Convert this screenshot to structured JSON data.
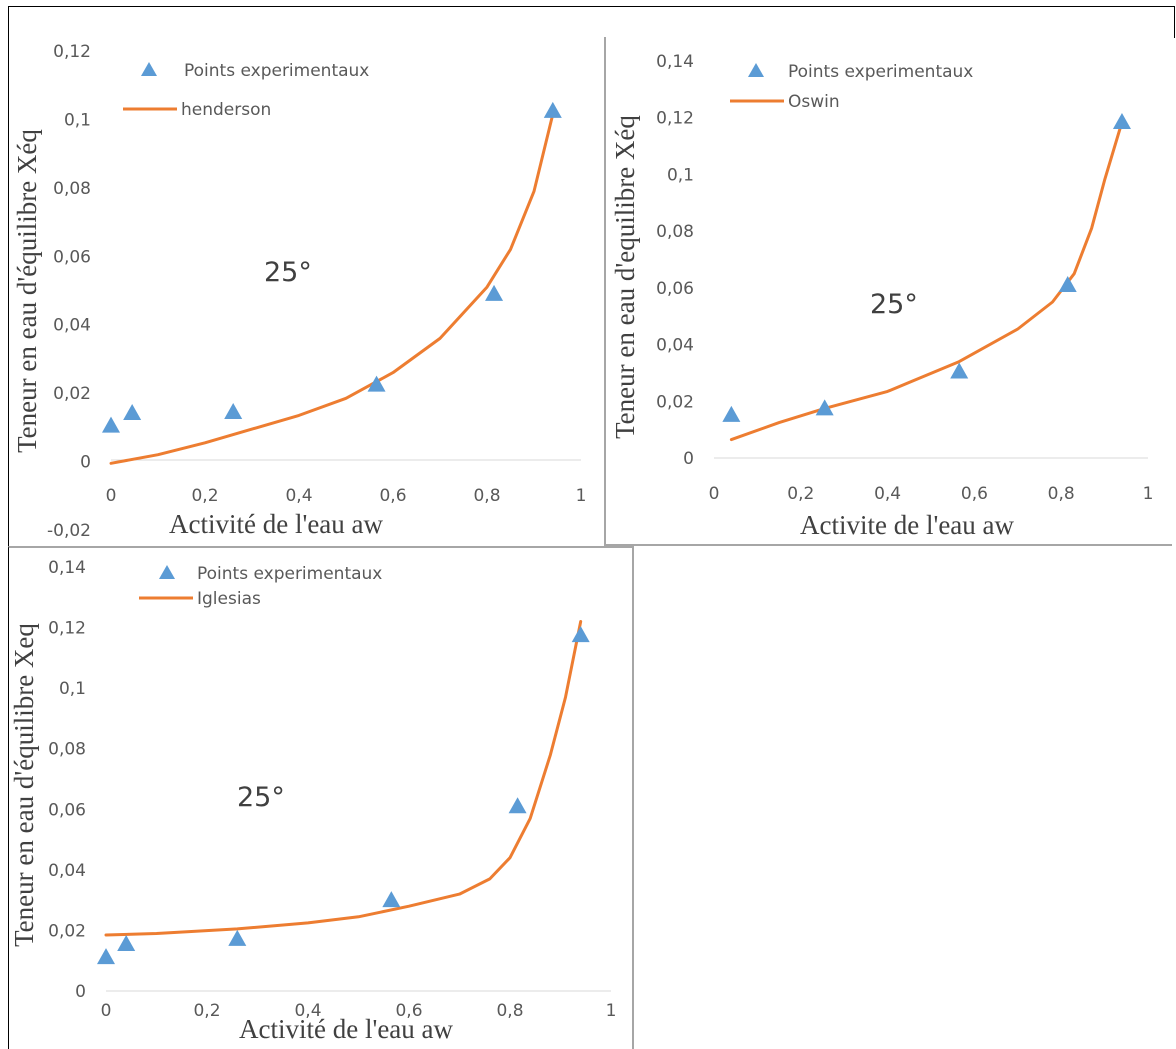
{
  "chart_data": [
    {
      "type": "scatter",
      "title": "",
      "xlabel": "Activité de l'eau aw",
      "ylabel": "Teneur en eau d'équilibre Xéq",
      "xlim": [
        0,
        1
      ],
      "ylim": [
        -0.02,
        0.12
      ],
      "xticks": [
        "0",
        "0,2",
        "0,4",
        "0,6",
        "0,8",
        "1"
      ],
      "yticks": [
        "-0,02",
        "0",
        "0,02",
        "0,04",
        "0,06",
        "0,08",
        "0,1",
        "0,12"
      ],
      "annotation": "25°",
      "legend_position": "top-left",
      "grid": false,
      "points_name": "Points experimentaux",
      "curve_name": "henderson",
      "points": [
        [
          0.0,
          0.0105
        ],
        [
          0.045,
          0.0142
        ],
        [
          0.26,
          0.0145
        ],
        [
          0.565,
          0.0225
        ],
        [
          0.815,
          0.049
        ],
        [
          0.94,
          0.1025
        ]
      ],
      "curve": [
        [
          0.0,
          -0.0005
        ],
        [
          0.1,
          0.002
        ],
        [
          0.2,
          0.0055
        ],
        [
          0.3,
          0.0095
        ],
        [
          0.4,
          0.0135
        ],
        [
          0.5,
          0.0185
        ],
        [
          0.6,
          0.026
        ],
        [
          0.7,
          0.036
        ],
        [
          0.8,
          0.051
        ],
        [
          0.85,
          0.062
        ],
        [
          0.9,
          0.079
        ],
        [
          0.94,
          0.1015
        ]
      ],
      "colors": {
        "points": "#5b9bd5",
        "curve": "#ed7d31"
      }
    },
    {
      "type": "scatter",
      "title": "",
      "xlabel": "Activite de l'eau aw",
      "ylabel": "Teneur en eau d'equilibre Xéq",
      "xlim": [
        0,
        1
      ],
      "ylim": [
        0,
        0.14
      ],
      "xticks": [
        "0",
        "0,2",
        "0,4",
        "0,6",
        "0,8",
        "1"
      ],
      "yticks": [
        "0",
        "0,02",
        "0,04",
        "0,06",
        "0,08",
        "0,1",
        "0,12",
        "0,14"
      ],
      "annotation": "25°",
      "legend_position": "top-left",
      "grid": false,
      "points_name": "Points experimentaux",
      "curve_name": "Oswin",
      "points": [
        [
          0.04,
          0.0152
        ],
        [
          0.255,
          0.0175
        ],
        [
          0.565,
          0.0305
        ],
        [
          0.815,
          0.061
        ],
        [
          0.94,
          0.1185
        ]
      ],
      "curve": [
        [
          0.04,
          0.0065
        ],
        [
          0.15,
          0.0125
        ],
        [
          0.255,
          0.0175
        ],
        [
          0.4,
          0.0235
        ],
        [
          0.565,
          0.034
        ],
        [
          0.7,
          0.0455
        ],
        [
          0.78,
          0.055
        ],
        [
          0.83,
          0.065
        ],
        [
          0.87,
          0.081
        ],
        [
          0.9,
          0.098
        ],
        [
          0.94,
          0.1185
        ]
      ],
      "colors": {
        "points": "#5b9bd5",
        "curve": "#ed7d31"
      }
    },
    {
      "type": "scatter",
      "title": "",
      "xlabel": "Activité de l'eau aw",
      "ylabel": "Teneur en eau d'équilibre Xeq",
      "xlim": [
        0,
        1
      ],
      "ylim": [
        0,
        0.14
      ],
      "xticks": [
        "0",
        "0,2",
        "0,4",
        "0,6",
        "0,8",
        "1"
      ],
      "yticks": [
        "0",
        "0,02",
        "0,04",
        "0,06",
        "0,08",
        "0,1",
        "0,12",
        "0,14"
      ],
      "annotation": "25°",
      "legend_position": "top-left",
      "grid": false,
      "points_name": "Points experimentaux",
      "curve_name": "Iglesias",
      "points": [
        [
          0.0,
          0.0112
        ],
        [
          0.04,
          0.0155
        ],
        [
          0.26,
          0.0172
        ],
        [
          0.565,
          0.03
        ],
        [
          0.815,
          0.061
        ],
        [
          0.94,
          0.1175
        ]
      ],
      "curve": [
        [
          0.0,
          0.0185
        ],
        [
          0.1,
          0.019
        ],
        [
          0.26,
          0.0205
        ],
        [
          0.4,
          0.0225
        ],
        [
          0.5,
          0.0245
        ],
        [
          0.6,
          0.028
        ],
        [
          0.7,
          0.032
        ],
        [
          0.76,
          0.037
        ],
        [
          0.8,
          0.044
        ],
        [
          0.84,
          0.057
        ],
        [
          0.88,
          0.078
        ],
        [
          0.91,
          0.097
        ],
        [
          0.94,
          0.122
        ]
      ],
      "colors": {
        "points": "#5b9bd5",
        "curve": "#ed7d31"
      }
    }
  ]
}
